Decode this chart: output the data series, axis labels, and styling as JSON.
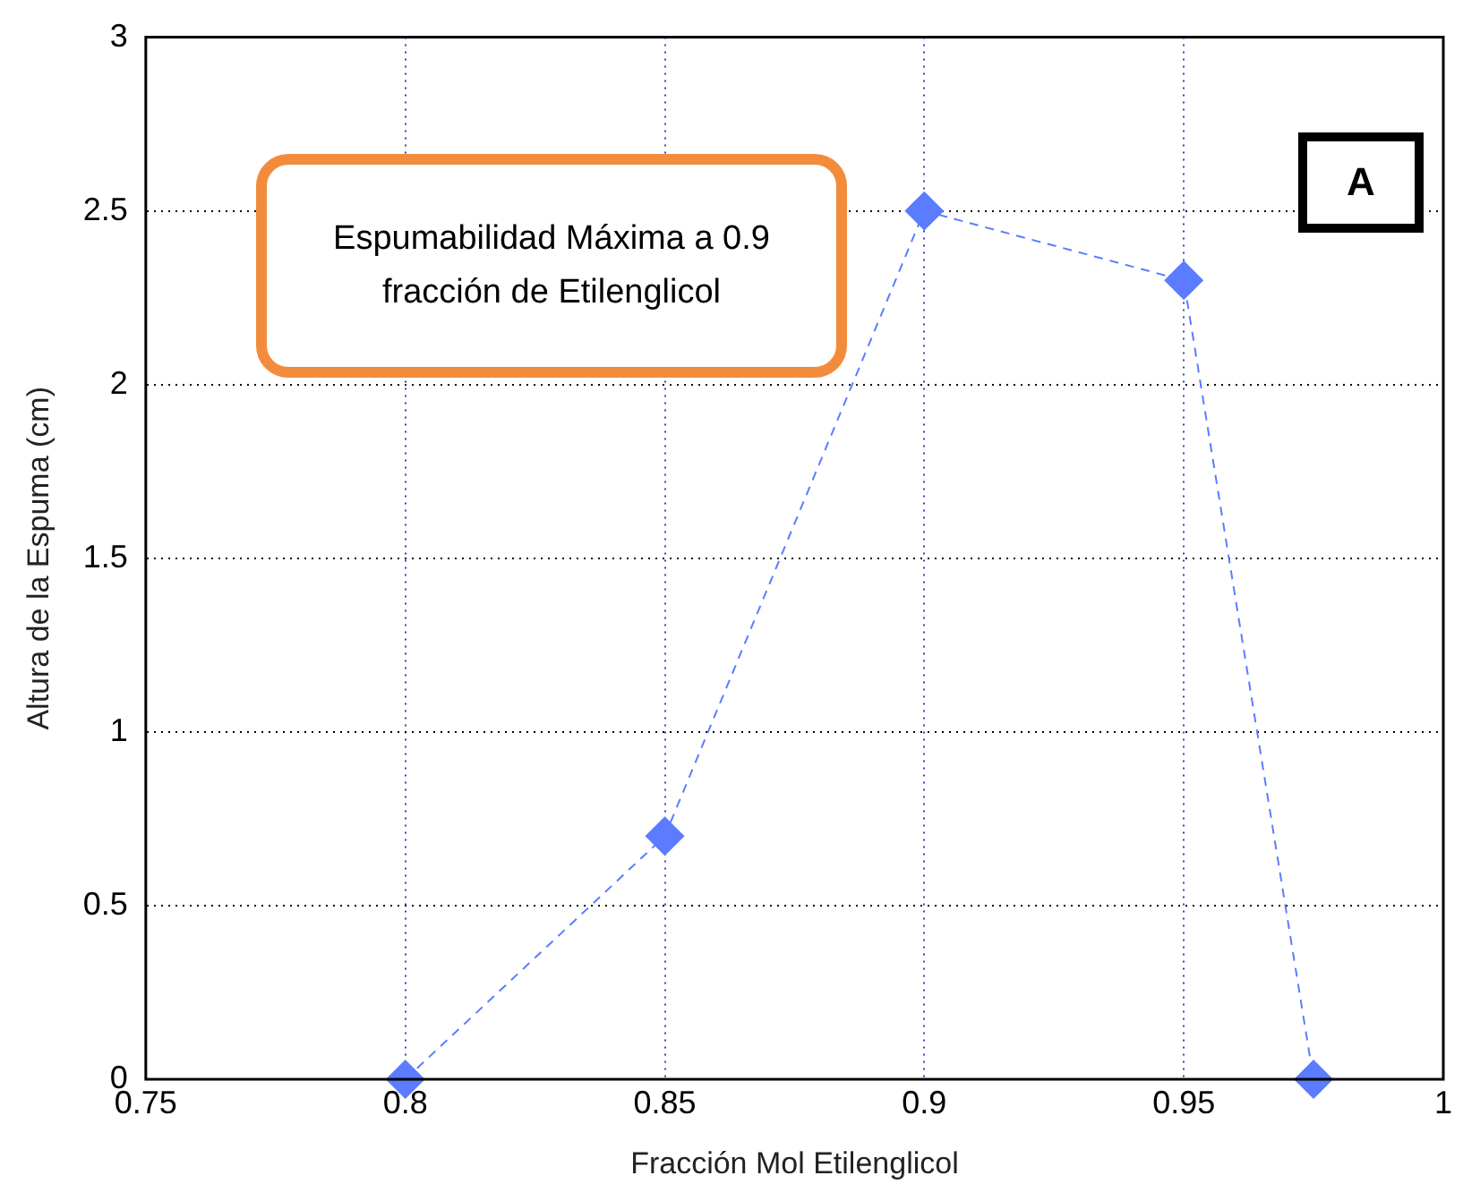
{
  "chart_data": {
    "type": "line",
    "xlabel": "Fracción Mol Etilenglicol",
    "ylabel": "Altura de la Espuma (cm)",
    "x": [
      0.8,
      0.85,
      0.9,
      0.95,
      0.975
    ],
    "series": [
      {
        "color": "#5b7cff",
        "values": [
          0,
          0.7,
          2.5,
          2.3,
          0
        ]
      }
    ],
    "xlim": [
      0.75,
      1
    ],
    "xticks": [
      0.75,
      0.8,
      0.85,
      0.9,
      0.95,
      1
    ],
    "ylim": [
      0,
      3
    ],
    "yticks": [
      0,
      0.5,
      1,
      1.5,
      2,
      2.5,
      3
    ],
    "grid": true,
    "legend": false,
    "marker": "diamond",
    "line_style": "dashed",
    "annotations": [
      "Espumabilidad Máxima a 0.9 fracción de Etilenglicol",
      "A"
    ]
  }
}
